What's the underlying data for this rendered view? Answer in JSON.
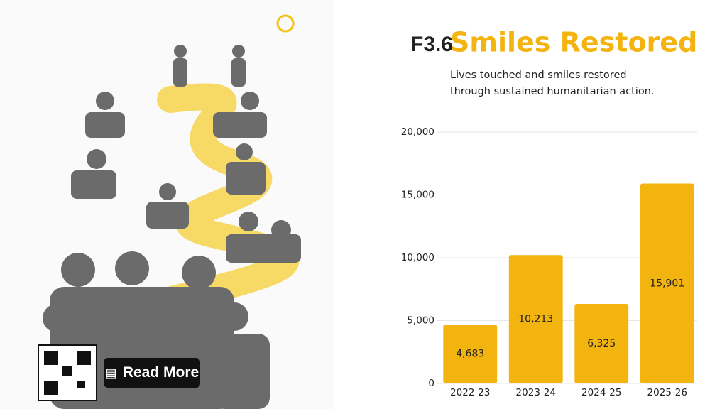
{
  "label": "F3.6",
  "read_more": "Read More",
  "chart_data": {
    "type": "bar",
    "title": "Smiles Restored",
    "subtitle": "Lives touched and smiles restored through sustained humanitarian action.",
    "categories": [
      "2022-23",
      "2023-24",
      "2024-25",
      "2025-26"
    ],
    "values": [
      4683,
      10213,
      6325,
      15901
    ],
    "value_labels": [
      "4,683",
      "10,213",
      "6,325",
      "15,901"
    ],
    "color": "#f3b410",
    "ylim": [
      0,
      20000
    ],
    "yticks": [
      0,
      {
        "value": 5000,
        "label": "5,000"
      },
      {
        "value": 10000,
        "label": "10,000"
      },
      {
        "value": 15000,
        "label": "15,000"
      },
      {
        "value": 20000,
        "label": "20,000"
      }
    ],
    "grid": true
  }
}
